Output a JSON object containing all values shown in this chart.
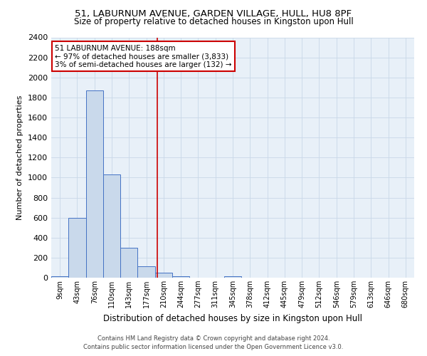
{
  "title1": "51, LABURNUM AVENUE, GARDEN VILLAGE, HULL, HU8 8PF",
  "title2": "Size of property relative to detached houses in Kingston upon Hull",
  "xlabel": "Distribution of detached houses by size in Kingston upon Hull",
  "ylabel": "Number of detached properties",
  "footer1": "Contains HM Land Registry data © Crown copyright and database right 2024.",
  "footer2": "Contains public sector information licensed under the Open Government Licence v3.0.",
  "bin_labels": [
    "9sqm",
    "43sqm",
    "76sqm",
    "110sqm",
    "143sqm",
    "177sqm",
    "210sqm",
    "244sqm",
    "277sqm",
    "311sqm",
    "345sqm",
    "378sqm",
    "412sqm",
    "445sqm",
    "479sqm",
    "512sqm",
    "546sqm",
    "579sqm",
    "613sqm",
    "646sqm",
    "680sqm"
  ],
  "bar_heights": [
    15,
    600,
    1870,
    1030,
    300,
    115,
    50,
    15,
    0,
    0,
    15,
    0,
    0,
    0,
    0,
    0,
    0,
    0,
    0,
    0,
    0
  ],
  "bar_color": "#c9d9eb",
  "bar_edge_color": "#4472c4",
  "vline_x": 5.65,
  "vline_color": "#cc0000",
  "ylim": [
    0,
    2400
  ],
  "yticks": [
    0,
    200,
    400,
    600,
    800,
    1000,
    1200,
    1400,
    1600,
    1800,
    2000,
    2200,
    2400
  ],
  "annotation_title": "51 LABURNUM AVENUE: 188sqm",
  "annotation_line1": "← 97% of detached houses are smaller (3,833)",
  "annotation_line2": "3% of semi-detached houses are larger (132) →",
  "annotation_box_color": "#ffffff",
  "annotation_box_edge": "#cc0000",
  "grid_color": "#c8d8e8",
  "bg_color": "#e8f0f8",
  "title1_fontsize": 9.5,
  "title2_fontsize": 8.5,
  "ylabel_fontsize": 8,
  "xlabel_fontsize": 8.5,
  "ytick_fontsize": 8,
  "xtick_fontsize": 7,
  "ann_fontsize": 7.5,
  "footer_fontsize": 6
}
